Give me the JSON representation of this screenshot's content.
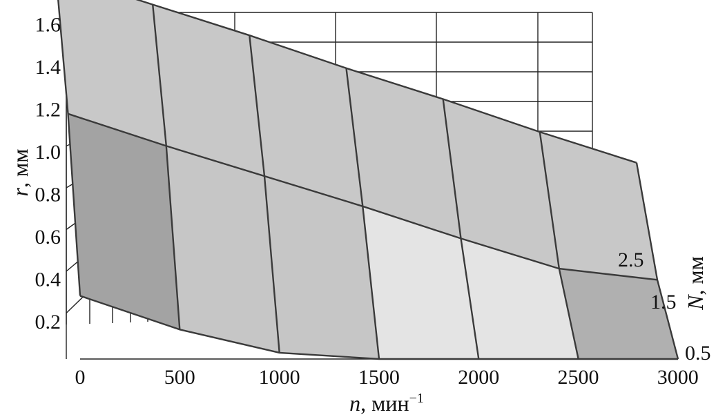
{
  "chart_data": {
    "type": "surface",
    "x_axis": {
      "var": "n",
      "unit": "мин",
      "unit_exp": "−1",
      "ticks": [
        "0",
        "500",
        "1000",
        "1500",
        "2000",
        "2500",
        "3000"
      ],
      "range": [
        0,
        3000
      ]
    },
    "y_axis": {
      "var": "r",
      "unit": "мм",
      "ticks": [
        "0.2",
        "0.4",
        "0.6",
        "0.8",
        "1.0",
        "1.2",
        "1.4",
        "1.6"
      ],
      "range": [
        0,
        1.6
      ]
    },
    "depth_axis": {
      "var": "N",
      "unit": "мм",
      "ticks": [
        "0.5",
        "1.5",
        "2.5"
      ],
      "range": [
        0.5,
        2.5
      ]
    },
    "surface_rows": [
      {
        "N": 2.5,
        "n": [
          0,
          500,
          1000,
          1500,
          2000,
          2500,
          3000
        ],
        "r": [
          1.6,
          1.38,
          1.16,
          0.93,
          0.71,
          0.48,
          0.26
        ]
      },
      {
        "N": 1.5,
        "n": [
          0,
          500,
          1000,
          1500,
          2000,
          2500,
          3000
        ],
        "r": [
          1.05,
          0.86,
          0.68,
          0.5,
          0.31,
          0.13,
          0.04
        ]
      },
      {
        "N": 0.5,
        "n": [
          0,
          500,
          1000,
          1500,
          2000,
          2500,
          3000
        ],
        "r": [
          0.3,
          0.14,
          0.03,
          0.0,
          0.0,
          0.0,
          0.0
        ]
      }
    ],
    "grid": true,
    "colormap": [
      "#5a5a5a",
      "#7d7d7d",
      "#a3a3a3",
      "#c6c6c6",
      "#e4e4e4",
      "#b0b0b0",
      "#c8c8c8",
      "#e8e8e8"
    ]
  }
}
